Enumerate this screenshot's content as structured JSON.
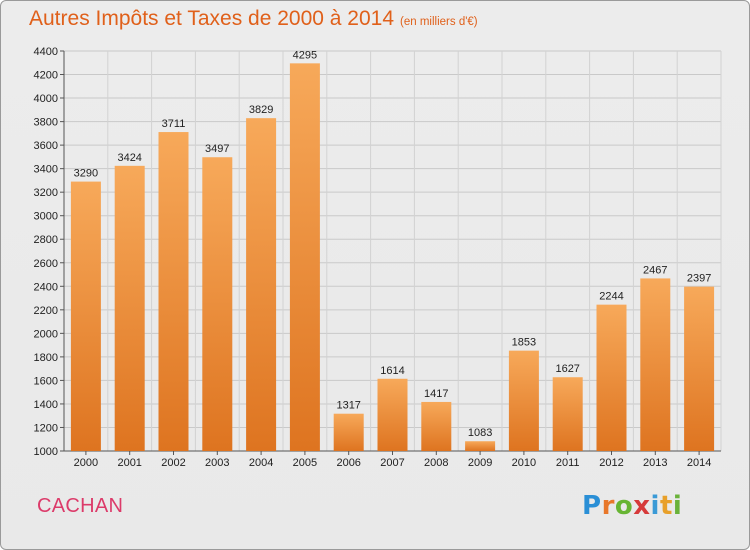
{
  "header": {
    "title": "Autres Impôts et Taxes de 2000 à 2014",
    "subtitle": "(en milliers d'€)"
  },
  "footer": {
    "location": "CACHAN",
    "brand": "Proxiti"
  },
  "colors": {
    "title": "#e0601a",
    "location": "#dc3b6a",
    "bar_light": "#f7a95a",
    "bar_dark": "#de7420",
    "brand_letters": [
      "#2a8fd6",
      "#e8772a",
      "#67b533",
      "#d63a3a",
      "#3a9ad6",
      "#e8a02a",
      "#6ab23a"
    ]
  },
  "chart_data": {
    "type": "bar",
    "title": "Autres Impôts et Taxes de 2000 à 2014",
    "categories": [
      "2000",
      "2001",
      "2002",
      "2003",
      "2004",
      "2005",
      "2006",
      "2007",
      "2008",
      "2009",
      "2010",
      "2011",
      "2012",
      "2013",
      "2014"
    ],
    "values": [
      3290,
      3424,
      3711,
      3497,
      3829,
      4295,
      1317,
      1614,
      1417,
      1083,
      1853,
      1627,
      2244,
      2467,
      2397
    ],
    "ylim": [
      1000,
      4400
    ],
    "yticks": [
      1000,
      1200,
      1400,
      1600,
      1800,
      2000,
      2200,
      2400,
      2600,
      2800,
      3000,
      3200,
      3400,
      3600,
      3800,
      4000,
      4200,
      4400
    ],
    "grid": true,
    "xlabel": "",
    "ylabel": ""
  }
}
